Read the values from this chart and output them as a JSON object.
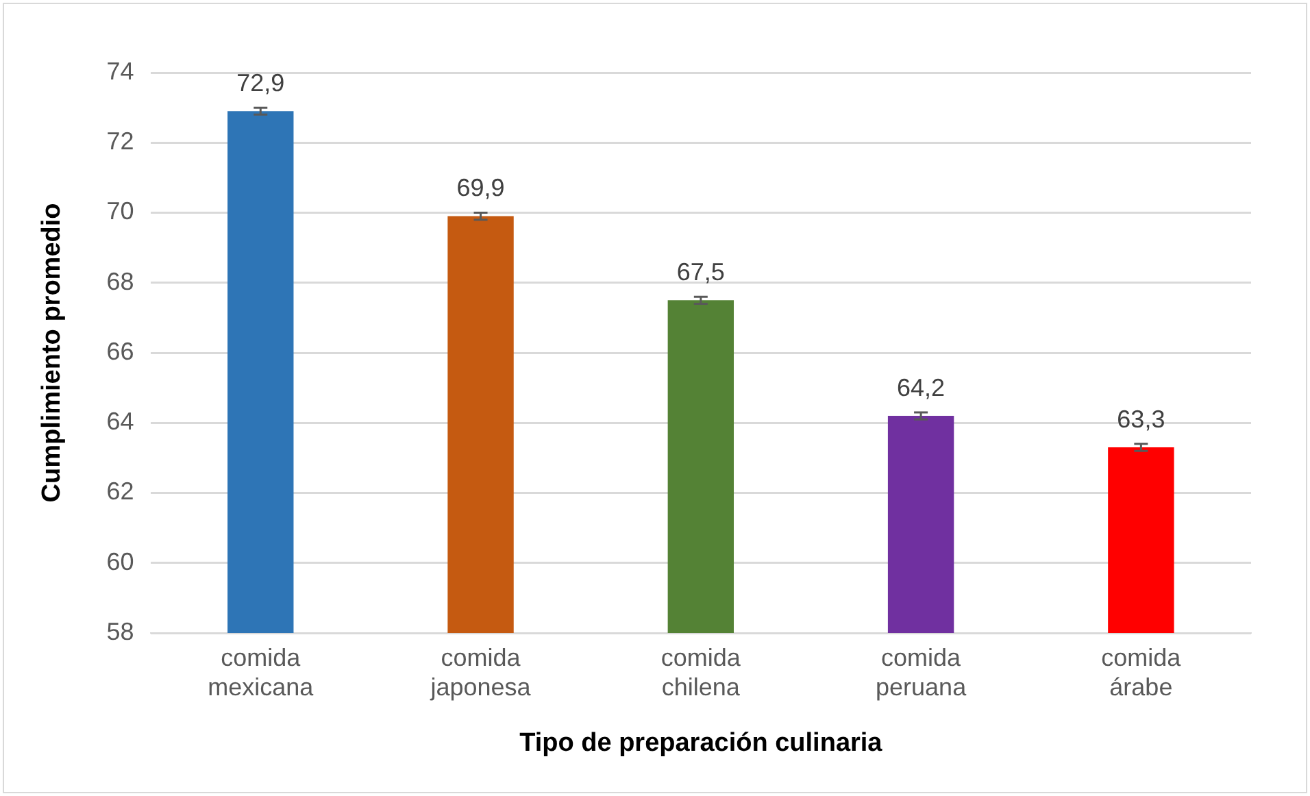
{
  "chart_data": {
    "type": "bar",
    "xlabel": "Tipo de preparación culinaria",
    "ylabel": "Cumplimiento promedio",
    "categories": [
      "comida mexicana",
      "comida japonesa",
      "comida chilena",
      "comida peruana",
      "comida árabe"
    ],
    "values": [
      72.9,
      69.9,
      67.5,
      64.2,
      63.3
    ],
    "colors": [
      "#2e75b6",
      "#c55a11",
      "#548235",
      "#7030a0",
      "#ff0000"
    ],
    "errors": [
      0.1,
      0.1,
      0.1,
      0.1,
      0.1
    ],
    "value_labels": [
      "72,9",
      "69,9",
      "67,5",
      "64,2",
      "63,3"
    ],
    "ylim": [
      58,
      74
    ],
    "yticks": [
      58,
      60,
      62,
      64,
      66,
      68,
      70,
      72,
      74
    ],
    "grid": "y"
  }
}
